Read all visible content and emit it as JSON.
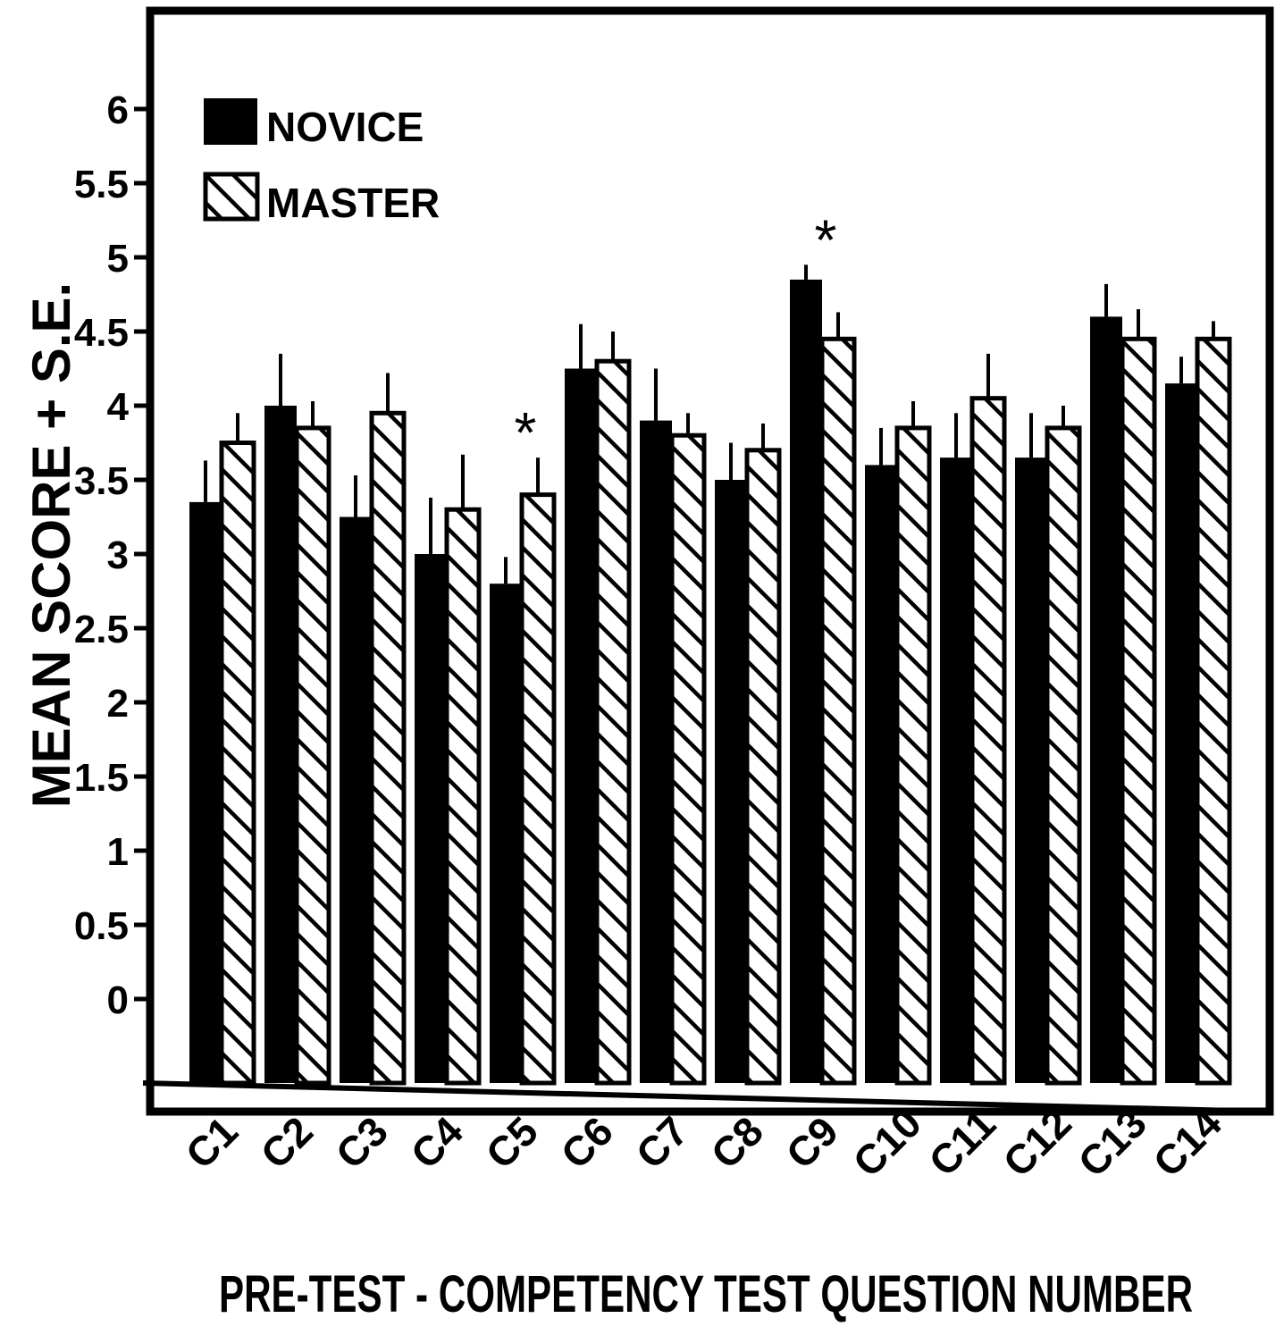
{
  "chart_data": {
    "type": "bar",
    "xlabel": "PRE-TEST - COMPETENCY TEST QUESTION NUMBER",
    "ylabel": "MEAN SCORE + S.E.",
    "ylim": [
      0,
      6
    ],
    "yticks": [
      "0",
      "0.5",
      "1",
      "1.5",
      "2",
      "2.5",
      "3",
      "3.5",
      "4",
      "4.5",
      "5",
      "5.5",
      "6"
    ],
    "categories": [
      "C1",
      "C2",
      "C3",
      "C4",
      "C5",
      "C6",
      "C7",
      "C8",
      "C9",
      "C10",
      "C11",
      "C12",
      "C13",
      "C14"
    ],
    "series": [
      {
        "name": "NOVICE",
        "pattern": "solid",
        "color": "#000000",
        "values": [
          3.35,
          4.0,
          3.25,
          3.0,
          2.8,
          4.25,
          3.9,
          3.5,
          4.85,
          3.6,
          3.65,
          3.65,
          4.6,
          4.15
        ],
        "errors": [
          0.28,
          0.35,
          0.28,
          0.38,
          0.18,
          0.3,
          0.35,
          0.25,
          0.1,
          0.25,
          0.3,
          0.3,
          0.22,
          0.18
        ]
      },
      {
        "name": "MASTER",
        "pattern": "hatched",
        "color": "#000000",
        "values": [
          3.75,
          3.85,
          3.95,
          3.3,
          3.4,
          4.3,
          3.8,
          3.7,
          4.45,
          3.85,
          4.05,
          3.85,
          4.45,
          4.45
        ],
        "errors": [
          0.2,
          0.18,
          0.27,
          0.37,
          0.25,
          0.2,
          0.15,
          0.18,
          0.18,
          0.18,
          0.3,
          0.15,
          0.2,
          0.12
        ]
      }
    ],
    "significance_markers": [
      {
        "category": "C5",
        "symbol": "*"
      },
      {
        "category": "C9",
        "symbol": "*"
      }
    ],
    "legend_position": "top-left",
    "grid": false
  }
}
